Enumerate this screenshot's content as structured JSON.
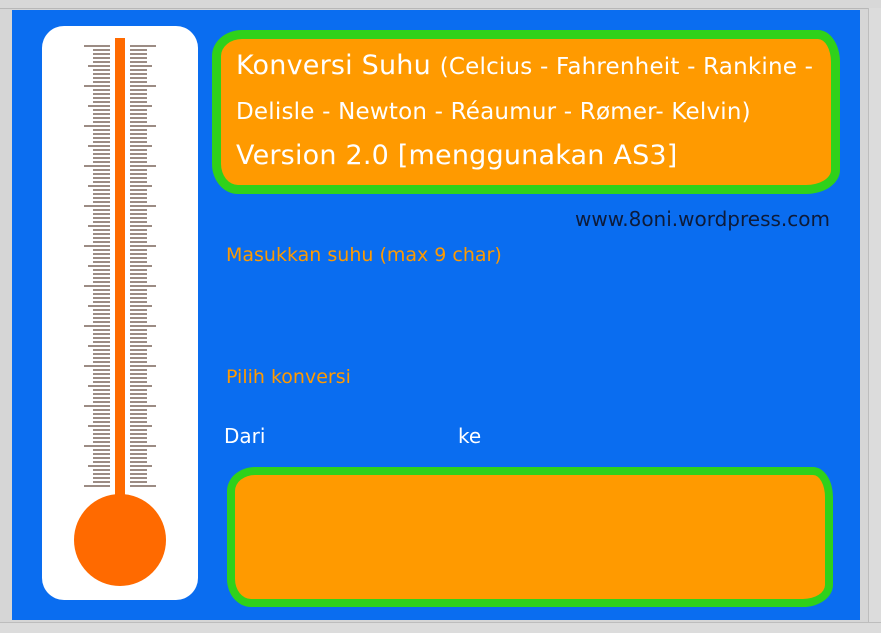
{
  "app": {
    "title_main": "Konversi Suhu",
    "title_paren": "(Celcius - Fahrenheit - Rankine - Delisle - Newton - Réaumur - Rømer- Kelvin)",
    "title_version": "Version 2.0 [menggunakan AS3]",
    "website": "www.8oni.wordpress.com"
  },
  "form": {
    "input_label": "Masukkan suhu (max 9 char)",
    "conversion_label": "Pilih konversi",
    "from_label": "Dari",
    "to_label": "ke"
  },
  "colors": {
    "background": "#0a6df0",
    "accent_orange": "#ff9a00",
    "border_green": "#2fd11a",
    "thermo_red": "#ff6a00"
  },
  "icons": {
    "thermometer": "thermometer-icon"
  }
}
